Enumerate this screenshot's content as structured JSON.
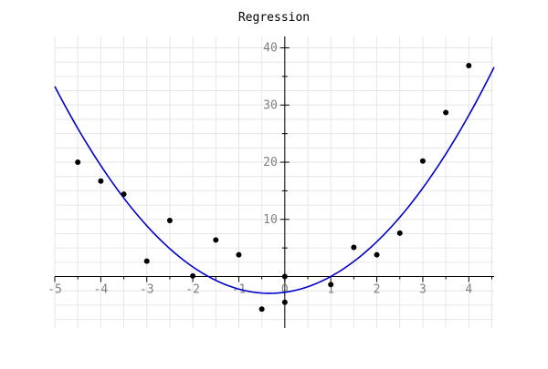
{
  "chart_data": {
    "type": "scatter",
    "title": "Regression",
    "xlabel": "",
    "ylabel": "",
    "xlim": [
      -5,
      4.55
    ],
    "ylim": [
      -9,
      42
    ],
    "grid": true,
    "xticks": [
      -5,
      -4,
      -3,
      -2,
      -1,
      0,
      1,
      2,
      3,
      4
    ],
    "yticks": [
      10,
      20,
      30,
      40
    ],
    "series": [
      {
        "kind": "points",
        "x": [
          -4.5,
          -4.0,
          -3.5,
          -3.0,
          -2.5,
          -2.0,
          -1.5,
          -1.0,
          -0.5,
          0.0,
          0.0,
          1.0,
          1.5,
          2.0,
          2.5,
          3.0,
          3.5,
          4.0
        ],
        "y": [
          20.0,
          16.7,
          14.4,
          2.7,
          9.8,
          0.1,
          6.4,
          3.8,
          -5.7,
          0.0,
          -4.5,
          -1.4,
          5.1,
          3.8,
          7.6,
          20.2,
          28.7,
          36.9
        ],
        "color": "#000000"
      },
      {
        "kind": "fit",
        "coefficients": [
          1.66,
          1.1,
          -2.75
        ],
        "x_range": [
          -5,
          4.55
        ],
        "color": "#0000cc"
      }
    ]
  }
}
